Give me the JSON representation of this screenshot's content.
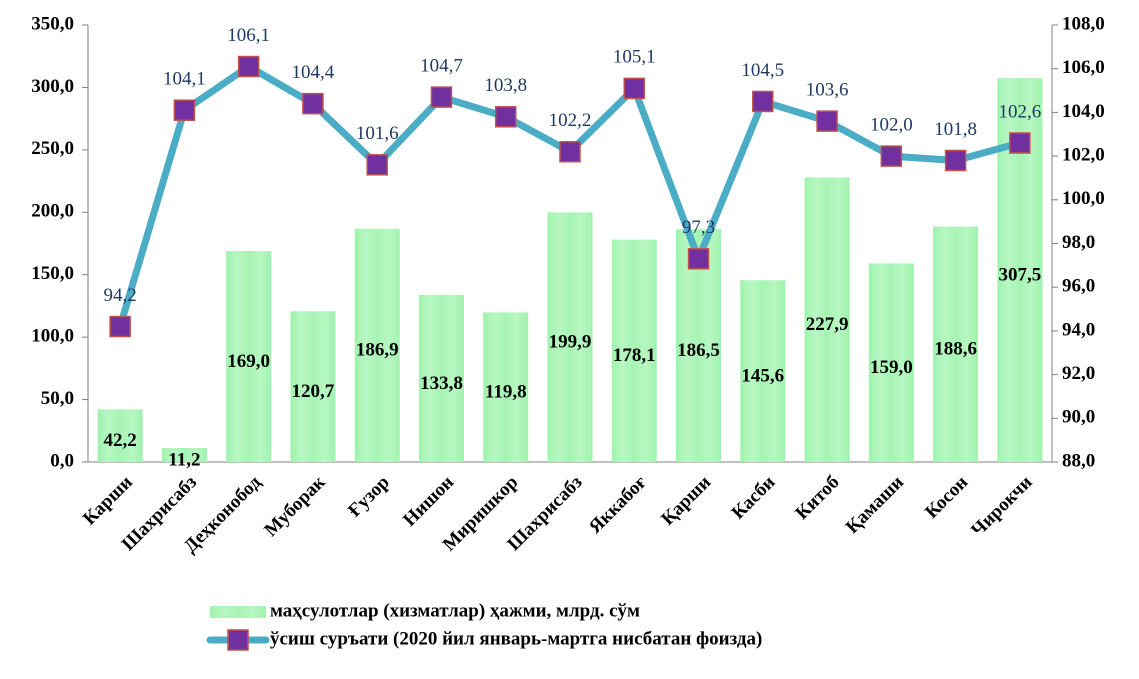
{
  "chart_data": {
    "type": "bar_line",
    "categories": [
      "Карши",
      "Шахрисабз",
      "Деҳконобод",
      "Муборак",
      "Ғузор",
      "Нишон",
      "Миришкор",
      "Шахрисабз",
      "Яккабоғ",
      "Қарши",
      "Касби",
      "Китоб",
      "Қамаши",
      "Косон",
      "Чирокчи"
    ],
    "series": [
      {
        "name": "маҳсулотлар (хизматлар) ҳажми, млрд. сўм",
        "type": "bar",
        "color": "#90ee9f",
        "values": [
          42.2,
          11.2,
          169.0,
          120.7,
          186.9,
          133.8,
          119.8,
          199.9,
          178.1,
          186.5,
          145.6,
          227.9,
          159.0,
          188.6,
          307.5
        ],
        "value_labels": [
          "42,2",
          "11,2",
          "169,0",
          "120,7",
          "186,9",
          "133,8",
          "119,8",
          "199,9",
          "178,1",
          "186,5",
          "145,6",
          "227,9",
          "159,0",
          "188,6",
          "307,5"
        ]
      },
      {
        "name": "ўсиш суръати (2020 йил январь-мартга нисбатан фоизда)",
        "type": "line",
        "axis": "y2",
        "color": "#4bacc6",
        "marker_color": "#7030a0",
        "values": [
          94.2,
          104.1,
          106.1,
          104.4,
          101.6,
          104.7,
          103.8,
          102.2,
          105.1,
          97.3,
          104.5,
          103.6,
          102.0,
          101.8,
          102.6
        ],
        "value_labels": [
          "94,2",
          "104,1",
          "106,1",
          "104,4",
          "101,6",
          "104,7",
          "103,8",
          "102,2",
          "105,1",
          "97,3",
          "104,5",
          "103,6",
          "102,0",
          "101,8",
          "102,6"
        ]
      }
    ],
    "ylim": [
      0,
      350
    ],
    "yticks": [
      {
        "value": 0,
        "label": "0,0"
      },
      {
        "value": 50,
        "label": "50,0"
      },
      {
        "value": 100,
        "label": "100,0"
      },
      {
        "value": 150,
        "label": "150,0"
      },
      {
        "value": 200,
        "label": "200,0"
      },
      {
        "value": 250,
        "label": "250,0"
      },
      {
        "value": 300,
        "label": "300,0"
      },
      {
        "value": 350,
        "label": "350,0"
      }
    ],
    "y2lim": [
      88,
      108
    ],
    "y2ticks": [
      {
        "value": 88,
        "label": "88,0"
      },
      {
        "value": 90,
        "label": "90,0"
      },
      {
        "value": 92,
        "label": "92,0"
      },
      {
        "value": 94,
        "label": "94,0"
      },
      {
        "value": 96,
        "label": "96,0"
      },
      {
        "value": 98,
        "label": "98,0"
      },
      {
        "value": 100,
        "label": "100,0"
      },
      {
        "value": 102,
        "label": "102,0"
      },
      {
        "value": 104,
        "label": "104,0"
      },
      {
        "value": 106,
        "label": "106,0"
      },
      {
        "value": 108,
        "label": "108,0"
      }
    ],
    "legend": "bottom"
  }
}
